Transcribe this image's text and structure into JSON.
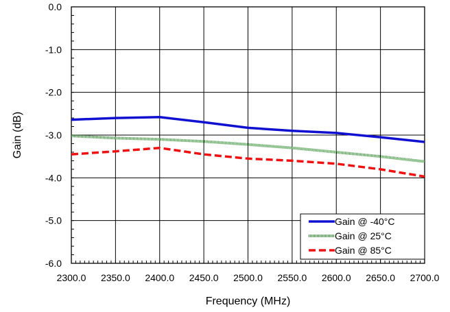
{
  "chart_data": {
    "type": "line",
    "xlabel": "Frequency (MHz)",
    "ylabel": "Gain (dB)",
    "xlim": [
      2300,
      2700
    ],
    "ylim": [
      -6,
      0
    ],
    "x_ticks": [
      2300,
      2350,
      2400,
      2450,
      2500,
      2550,
      2600,
      2650,
      2700
    ],
    "y_ticks": [
      0,
      -1,
      -2,
      -3,
      -4,
      -5,
      -6
    ],
    "x_tick_labels": [
      "2300.0",
      "2350.0",
      "2400.0",
      "2450.0",
      "2500.0",
      "2550.0",
      "2600.0",
      "2650.0",
      "2700.0"
    ],
    "y_tick_labels": [
      "0.0",
      "-1.0",
      "-2.0",
      "-3.0",
      "-4.0",
      "-5.0",
      "-6.0"
    ],
    "grid": true,
    "legend_position": "bottom-right",
    "series": [
      {
        "name": "Gain @ -40°C",
        "color": "#1010d0",
        "style": "solid",
        "x": [
          2300,
          2350,
          2400,
          2450,
          2500,
          2550,
          2600,
          2650,
          2700
        ],
        "y": [
          -2.64,
          -2.6,
          -2.58,
          -2.7,
          -2.83,
          -2.9,
          -2.95,
          -3.05,
          -3.16
        ]
      },
      {
        "name": "Gain @ 25°C",
        "color": "#2e8b2e",
        "style": "dotted",
        "x": [
          2300,
          2350,
          2400,
          2450,
          2500,
          2550,
          2600,
          2650,
          2700
        ],
        "y": [
          -3.02,
          -3.07,
          -3.1,
          -3.15,
          -3.22,
          -3.3,
          -3.4,
          -3.5,
          -3.62
        ]
      },
      {
        "name": "Gain @ 85°C",
        "color": "#ee1111",
        "style": "dashed",
        "x": [
          2300,
          2350,
          2400,
          2450,
          2500,
          2550,
          2600,
          2650,
          2700
        ],
        "y": [
          -3.45,
          -3.38,
          -3.3,
          -3.45,
          -3.55,
          -3.6,
          -3.67,
          -3.8,
          -3.97
        ]
      }
    ]
  }
}
